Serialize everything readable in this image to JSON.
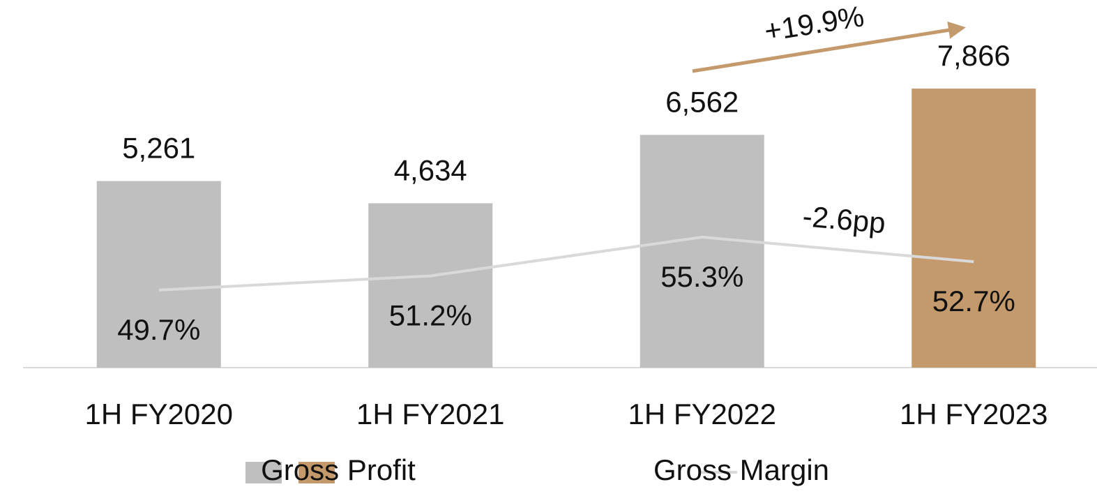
{
  "chart_data": {
    "type": "bar_line",
    "categories": [
      "1H FY2020",
      "1H FY2021",
      "1H FY2022",
      "1H FY2023"
    ],
    "series": [
      {
        "name": "Gross Profit",
        "type": "bar",
        "colors": [
          "#bfbfbf",
          "#bfbfbf",
          "#bfbfbf",
          "#c49a6c"
        ],
        "values": [
          5261,
          4634,
          6562,
          7866
        ],
        "value_labels": [
          "5,261",
          "4,634",
          "6,562",
          "7,866"
        ]
      },
      {
        "name": "Gross Margin",
        "type": "line",
        "axis": "y2",
        "color": "#d9d9d9",
        "values": [
          49.7,
          51.2,
          55.3,
          52.7
        ],
        "value_labels": [
          "49.7%",
          "51.2%",
          "55.3%",
          "52.7%"
        ]
      }
    ],
    "ylim": [
      0,
      10000
    ],
    "y2lim": [
      41.5,
      79
    ],
    "annotations": [
      {
        "text": "+19.9%",
        "color": "#c49a6c"
      },
      {
        "text": "-2.6pp",
        "color": "#000000"
      }
    ]
  }
}
